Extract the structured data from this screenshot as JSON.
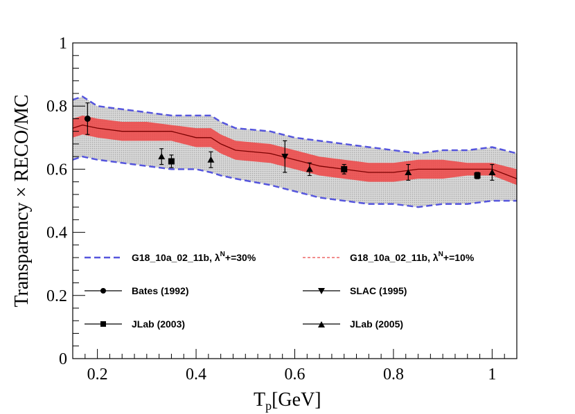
{
  "chart_data": {
    "type": "line",
    "title": "",
    "xlabel": "T",
    "xlabel_sub": "p",
    "xlabel_unit": "[GeV]",
    "ylabel": "Transparency × RECO/MC",
    "xlim": [
      0.15,
      1.05
    ],
    "ylim": [
      0,
      1
    ],
    "x_ticks": [
      0.2,
      0.4,
      0.6,
      0.8,
      1.0
    ],
    "x_tick_labels": [
      "0.2",
      "0.4",
      "0.6",
      "0.8",
      "1"
    ],
    "y_ticks": [
      0,
      0.2,
      0.4,
      0.6,
      0.8,
      1.0
    ],
    "y_tick_labels": [
      "0",
      "0.2",
      "0.4",
      "0.6",
      "0.8",
      "1"
    ],
    "grid": false,
    "x": [
      0.15,
      0.17,
      0.2,
      0.25,
      0.3,
      0.35,
      0.4,
      0.43,
      0.45,
      0.48,
      0.55,
      0.6,
      0.65,
      0.7,
      0.75,
      0.8,
      0.85,
      0.9,
      0.95,
      1.0,
      1.05
    ],
    "central": [
      0.73,
      0.74,
      0.73,
      0.72,
      0.72,
      0.72,
      0.7,
      0.7,
      0.68,
      0.66,
      0.65,
      0.63,
      0.61,
      0.6,
      0.59,
      0.59,
      0.6,
      0.6,
      0.6,
      0.6,
      0.57
    ],
    "band_30": {
      "upper": [
        0.82,
        0.83,
        0.8,
        0.79,
        0.78,
        0.77,
        0.77,
        0.77,
        0.75,
        0.73,
        0.72,
        0.7,
        0.69,
        0.68,
        0.67,
        0.66,
        0.65,
        0.66,
        0.66,
        0.67,
        0.65
      ],
      "lower": [
        0.63,
        0.64,
        0.63,
        0.62,
        0.61,
        0.6,
        0.6,
        0.59,
        0.58,
        0.57,
        0.55,
        0.53,
        0.51,
        0.5,
        0.49,
        0.49,
        0.48,
        0.49,
        0.49,
        0.5,
        0.5
      ]
    },
    "band_10": {
      "upper": [
        0.76,
        0.77,
        0.76,
        0.75,
        0.75,
        0.74,
        0.73,
        0.73,
        0.71,
        0.69,
        0.68,
        0.66,
        0.64,
        0.63,
        0.62,
        0.62,
        0.63,
        0.63,
        0.62,
        0.62,
        0.6
      ],
      "lower": [
        0.7,
        0.71,
        0.7,
        0.69,
        0.69,
        0.69,
        0.67,
        0.67,
        0.65,
        0.63,
        0.62,
        0.6,
        0.58,
        0.57,
        0.56,
        0.56,
        0.57,
        0.57,
        0.58,
        0.58,
        0.55
      ]
    },
    "points": [
      {
        "series": "Bates (1992)",
        "marker": "circle",
        "x": 0.18,
        "y": 0.76,
        "err": 0.05
      },
      {
        "series": "SLAC (1995)",
        "marker": "triangle-down",
        "x": 0.58,
        "y": 0.64,
        "err": 0.05
      },
      {
        "series": "JLab (2003)",
        "marker": "square",
        "x": 0.35,
        "y": 0.625,
        "err": 0.02
      },
      {
        "series": "JLab (2003)",
        "marker": "square",
        "x": 0.7,
        "y": 0.6,
        "err": 0.015
      },
      {
        "series": "JLab (2003)",
        "marker": "square",
        "x": 0.97,
        "y": 0.58,
        "err": 0.01
      },
      {
        "series": "JLab (2005)",
        "marker": "triangle-up",
        "x": 0.33,
        "y": 0.64,
        "err": 0.025
      },
      {
        "series": "JLab (2005)",
        "marker": "triangle-up",
        "x": 0.43,
        "y": 0.63,
        "err": 0.025
      },
      {
        "series": "JLab (2005)",
        "marker": "triangle-up",
        "x": 0.63,
        "y": 0.6,
        "err": 0.02
      },
      {
        "series": "JLab (2005)",
        "marker": "triangle-up",
        "x": 0.83,
        "y": 0.59,
        "err": 0.025
      },
      {
        "series": "JLab (2005)",
        "marker": "triangle-up",
        "x": 1.0,
        "y": 0.59,
        "err": 0.025
      }
    ],
    "legend": [
      {
        "label_main": "G18_10a_02_11b, λ",
        "label_sup": "N",
        "label_tail": "+=30%",
        "style": "dashed-blue",
        "color": "#5555dd"
      },
      {
        "label_main": "G18_10a_02_11b, λ",
        "label_sup": "N",
        "label_tail": "+=10%",
        "style": "dashed-red",
        "color": "#ee6666"
      },
      {
        "label": "Bates (1992)",
        "marker": "circle"
      },
      {
        "label": "SLAC (1995)",
        "marker": "triangle-down"
      },
      {
        "label": "JLab (2003)",
        "marker": "square"
      },
      {
        "label": "JLab (2005)",
        "marker": "triangle-up"
      }
    ],
    "colors": {
      "band_30_fill": "#cfcfcf",
      "band_10_fill": "#ee4444",
      "band_30_edge": "#5555dd",
      "band_10_edge": "#ee6666",
      "central_line": "#7a0000",
      "points": "#000000"
    }
  }
}
